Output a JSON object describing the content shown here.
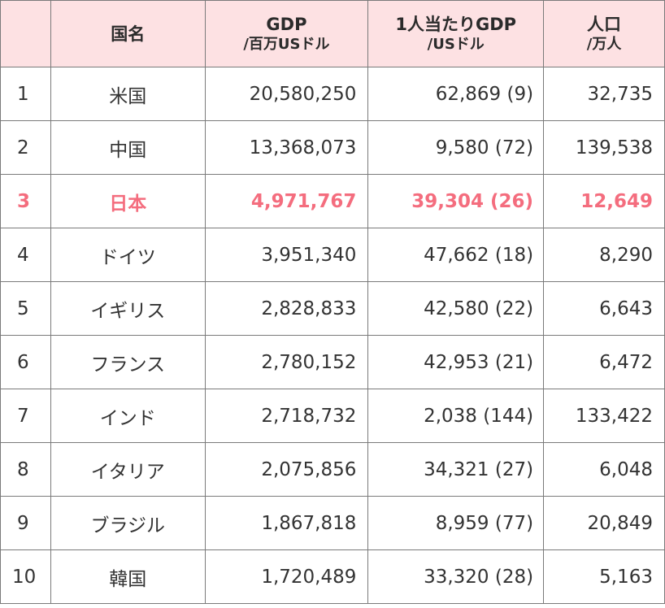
{
  "header": {
    "rank": "",
    "name": "国名",
    "gdp_line1": "GDP",
    "gdp_line2": "/百万USドル",
    "pc_line1": "1人当たりGDP",
    "pc_line2": "/USドル",
    "pop_line1": "人口",
    "pop_line2": "/万人"
  },
  "colors": {
    "header_bg": "#fde1e3",
    "highlight_text": "#f46d7e",
    "border": "#7a7a7a"
  },
  "rows": [
    {
      "rank": "1",
      "name": "米国",
      "gdp": "20,580,250",
      "per_capita": "62,869 (9)",
      "population": "32,735"
    },
    {
      "rank": "2",
      "name": "中国",
      "gdp": "13,368,073",
      "per_capita": "9,580 (72)",
      "population": "139,538"
    },
    {
      "rank": "3",
      "name": "日本",
      "gdp": "4,971,767",
      "per_capita": "39,304 (26)",
      "population": "12,649"
    },
    {
      "rank": "4",
      "name": "ドイツ",
      "gdp": "3,951,340",
      "per_capita": "47,662 (18)",
      "population": "8,290"
    },
    {
      "rank": "5",
      "name": "イギリス",
      "gdp": "2,828,833",
      "per_capita": "42,580 (22)",
      "population": "6,643"
    },
    {
      "rank": "6",
      "name": "フランス",
      "gdp": "2,780,152",
      "per_capita": "42,953 (21)",
      "population": "6,472"
    },
    {
      "rank": "7",
      "name": "インド",
      "gdp": "2,718,732",
      "per_capita": "2,038 (144)",
      "population": "133,422"
    },
    {
      "rank": "8",
      "name": "イタリア",
      "gdp": "2,075,856",
      "per_capita": "34,321 (27)",
      "population": "6,048"
    },
    {
      "rank": "9",
      "name": "ブラジル",
      "gdp": "1,867,818",
      "per_capita": "8,959 (77)",
      "population": "20,849"
    },
    {
      "rank": "10",
      "name": "韓国",
      "gdp": "1,720,489",
      "per_capita": "33,320 (28)",
      "population": "5,163"
    }
  ]
}
